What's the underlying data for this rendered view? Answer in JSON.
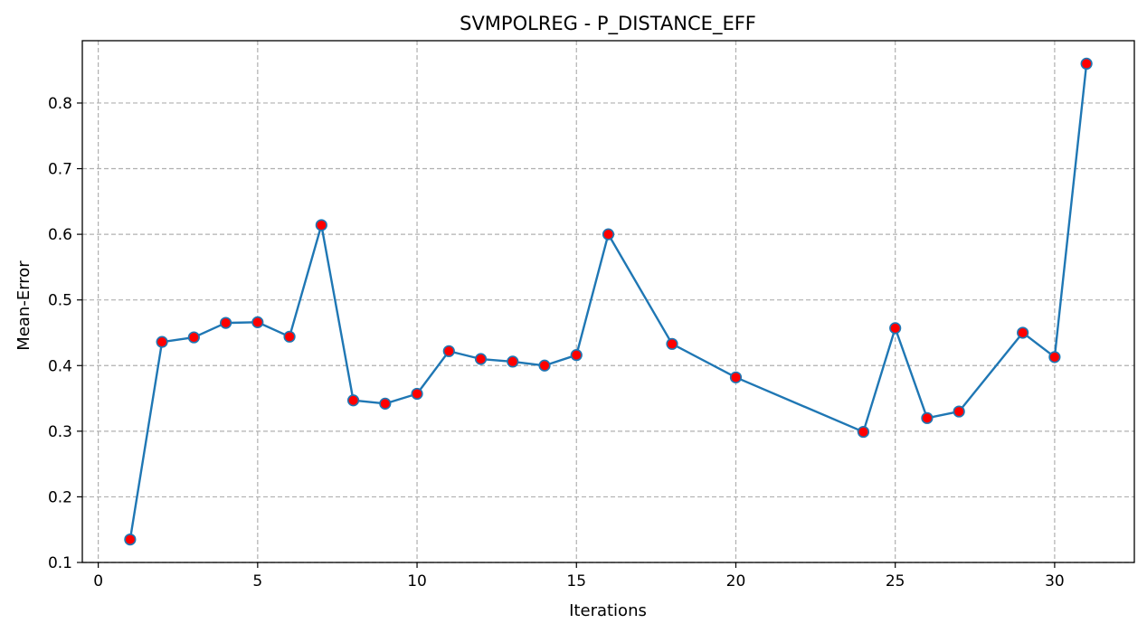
{
  "chart_data": {
    "type": "line",
    "title": "SVMPOLREG - P_DISTANCE_EFF",
    "xlabel": "Iterations",
    "ylabel": "Mean-Error",
    "xlim": [
      -0.5,
      32.5
    ],
    "ylim": [
      0.1,
      0.895
    ],
    "xticks": [
      0,
      5,
      10,
      15,
      20,
      25,
      30
    ],
    "yticks": [
      0.1,
      0.2,
      0.3,
      0.4,
      0.5,
      0.6,
      0.7,
      0.8
    ],
    "xtick_labels": [
      "0",
      "5",
      "10",
      "15",
      "20",
      "25",
      "30"
    ],
    "ytick_labels": [
      "0.1",
      "0.2",
      "0.3",
      "0.4",
      "0.5",
      "0.6",
      "0.7",
      "0.8"
    ],
    "grid": true,
    "line_color": "#1f77b4",
    "marker_face_color": "#ff0000",
    "marker_edge_color": "#1f77b4",
    "series": [
      {
        "x": [
          1,
          2,
          3,
          4,
          5,
          6,
          7,
          8,
          9,
          10,
          11,
          12,
          13,
          14,
          15,
          16,
          18,
          20,
          24,
          25,
          26,
          27,
          29,
          30,
          31
        ],
        "values": [
          0.135,
          0.436,
          0.443,
          0.465,
          0.466,
          0.444,
          0.614,
          0.347,
          0.342,
          0.357,
          0.422,
          0.41,
          0.406,
          0.4,
          0.416,
          0.6,
          0.433,
          0.382,
          0.299,
          0.457,
          0.32,
          0.33,
          0.45,
          0.413,
          0.86
        ]
      }
    ]
  }
}
